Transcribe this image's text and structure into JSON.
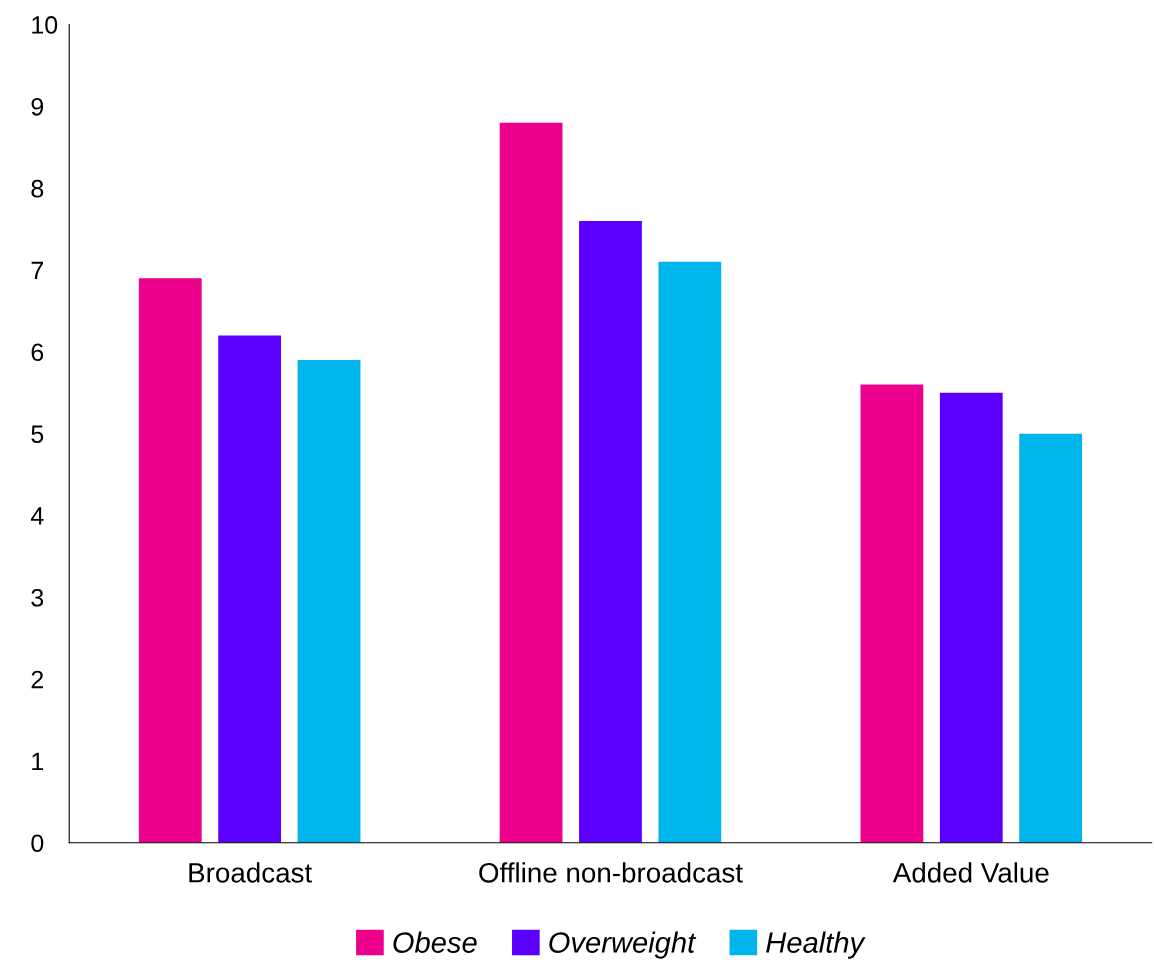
{
  "chart_data": {
    "type": "bar",
    "categories": [
      "Broadcast",
      "Offline non-broadcast",
      "Added Value"
    ],
    "series": [
      {
        "name": "Obese",
        "color": "#ec008c",
        "values": [
          6.9,
          8.8,
          5.6
        ]
      },
      {
        "name": "Overweight",
        "color": "#5b00ff",
        "values": [
          6.2,
          7.6,
          5.5
        ]
      },
      {
        "name": "Healthy",
        "color": "#00b4ec",
        "values": [
          5.9,
          7.1,
          5.0
        ]
      }
    ],
    "ylim": [
      0,
      10
    ],
    "yticks": [
      0,
      1,
      2,
      3,
      4,
      5,
      6,
      7,
      8,
      9,
      10
    ],
    "grid": false,
    "legend": "bottom"
  }
}
